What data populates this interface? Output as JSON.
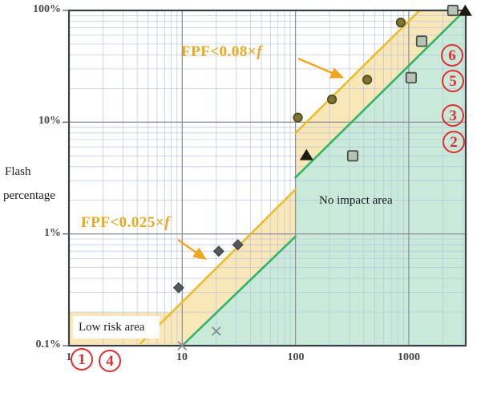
{
  "y_axis_title_lines": [
    "Flash",
    "percentage"
  ],
  "chart_data": {
    "type": "scatter",
    "title": "",
    "xlabel": "",
    "ylabel": "Flash percentage",
    "x_scale": "log",
    "y_scale": "log",
    "x_range": [
      1,
      3185
    ],
    "y_range_percent": [
      0.1,
      100
    ],
    "x_ticks": [
      {
        "value": 1,
        "label": "1"
      },
      {
        "value": 10,
        "label": "10"
      },
      {
        "value": 100,
        "label": "100"
      },
      {
        "value": 1000,
        "label": "1000"
      }
    ],
    "y_ticks": [
      {
        "value": 0.1,
        "label": "0.1%"
      },
      {
        "value": 1,
        "label": "1%"
      },
      {
        "value": 10,
        "label": "10%"
      },
      {
        "value": 100,
        "label": "100%"
      }
    ],
    "grid": {
      "minor_color": "#b4bfe6",
      "major_color": "#8f939e"
    },
    "regions": [
      {
        "name": "low-risk-and-threshold-band",
        "fill": "#f5d88a",
        "opacity": 0.62,
        "points": [
          [
            1,
            0.2
          ],
          [
            8,
            0.2
          ],
          [
            100,
            2.5
          ],
          [
            100,
            8
          ],
          [
            1250,
            100
          ],
          [
            3185,
            100
          ],
          [
            100,
            3.2
          ],
          [
            100,
            0.95
          ],
          [
            10,
            0.1
          ],
          [
            1,
            0.1
          ]
        ]
      },
      {
        "name": "no-impact-area",
        "fill": "#9ed8ba",
        "opacity": 0.55,
        "points": [
          [
            10,
            0.1
          ],
          [
            100,
            0.95
          ],
          [
            100,
            3.2
          ],
          [
            3185,
            100
          ],
          [
            3185,
            0.1
          ]
        ]
      }
    ],
    "boundary_lines": [
      {
        "name": "fpf-low-limit",
        "formula": "FPF=0.025×f",
        "color": "#eebc2a",
        "width": 2.6,
        "points": [
          [
            4.3,
            0.105
          ],
          [
            100,
            2.5
          ]
        ]
      },
      {
        "name": "fpf-high-limit",
        "formula": "FPF=0.08×f",
        "color": "#eebc2a",
        "width": 2.6,
        "points": [
          [
            100,
            8
          ],
          [
            1270,
            102
          ]
        ]
      },
      {
        "name": "no-impact-lower",
        "formula": "FPF=0.01×f",
        "color": "#2fb468",
        "width": 2.6,
        "points": [
          [
            10,
            0.1
          ],
          [
            100,
            0.95
          ]
        ]
      },
      {
        "name": "no-impact-upper",
        "formula": "FPF=0.032×f",
        "color": "#2fb468",
        "width": 2.6,
        "points": [
          [
            100,
            3.2
          ],
          [
            3185,
            102
          ]
        ]
      }
    ],
    "series": [
      {
        "name": "circles",
        "marker": "circle",
        "fill": "#7d7434",
        "stroke": "#4d471d",
        "points": [
          [
            105,
            11
          ],
          [
            210,
            16
          ],
          [
            430,
            24
          ],
          [
            850,
            78
          ]
        ]
      },
      {
        "name": "squares",
        "marker": "square",
        "fill": "#b7c4b4",
        "stroke": "#46514b",
        "points": [
          [
            320,
            5
          ],
          [
            1050,
            25
          ],
          [
            1300,
            53
          ],
          [
            2450,
            100
          ]
        ]
      },
      {
        "name": "triangles",
        "marker": "triangle",
        "fill": "#1c1c12",
        "stroke": "#1c1c12",
        "points": [
          [
            125,
            5
          ],
          [
            3150,
            98
          ]
        ]
      },
      {
        "name": "diamonds",
        "marker": "diamond",
        "fill": "#52575d",
        "stroke": "#3c4046",
        "points": [
          [
            9.3,
            0.33
          ],
          [
            21,
            0.7
          ],
          [
            31,
            0.8
          ]
        ]
      },
      {
        "name": "crosses",
        "marker": "x",
        "fill": "none",
        "stroke": "#878d93",
        "points": [
          [
            10,
            0.1
          ],
          [
            20,
            0.135
          ]
        ]
      }
    ],
    "legend": "none"
  },
  "annotations": {
    "fpf_high": {
      "text": "FPF<0.08×",
      "var": "f",
      "color": "#eca81f"
    },
    "fpf_low": {
      "text": "FPF<0.025×",
      "var": "f",
      "color": "#eca81f"
    },
    "no_impact": {
      "text": "No impact area"
    },
    "low_risk": {
      "text": "Low risk area"
    }
  },
  "callouts": {
    "color": "#e02f2f",
    "bottom_left": [
      "1",
      "4"
    ],
    "right": [
      "6",
      "5",
      "3",
      "2"
    ]
  }
}
